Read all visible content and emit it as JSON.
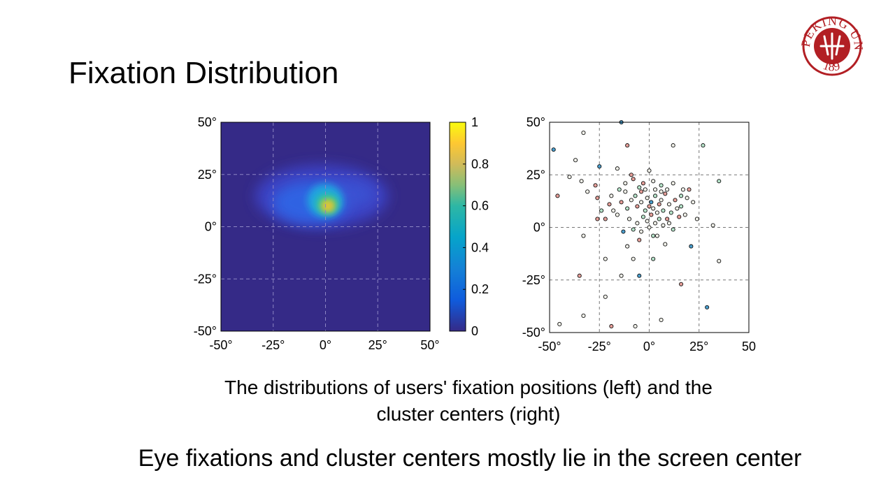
{
  "slide": {
    "title": "Fixation Distribution",
    "caption_line1": "The distributions of users' fixation positions (left) and the",
    "caption_line2": "cluster centers (right)",
    "conclusion": "Eye fixations and cluster centers mostly lie in the screen center"
  },
  "logo": {
    "name": "peking-university-seal",
    "text": "PEKING UNIVERSITY",
    "year": "1898",
    "color": "#b21f24"
  },
  "chart_data": [
    {
      "type": "heatmap",
      "name": "fixation-density",
      "x_ticks": [
        "-50°",
        "-25°",
        "0°",
        "25°",
        "50°"
      ],
      "y_ticks": [
        "50°",
        "25°",
        "0°",
        "-25°",
        "-50°"
      ],
      "xlim": [
        -50,
        50
      ],
      "ylim": [
        -50,
        50
      ],
      "grid": true,
      "peak_center": [
        1,
        9
      ],
      "colormap": "parula",
      "colorbar": {
        "ticks": [
          "1",
          "0.8",
          "0.6",
          "0.4",
          "0.2",
          "0"
        ],
        "range": [
          0,
          1
        ]
      }
    },
    {
      "type": "scatter",
      "name": "cluster-centers",
      "x_ticks": [
        "-50°",
        "-25°",
        "0°",
        "25°",
        "50"
      ],
      "y_ticks": [
        "50°",
        "25°",
        "0°",
        "-25°",
        "-50°"
      ],
      "xlim": [
        -50,
        50
      ],
      "ylim": [
        -50,
        50
      ],
      "grid": true,
      "colors": {
        "r": "#e8a09a",
        "g": "#b8e6cc",
        "b": "#4a9fcf",
        "w": "#f2f2ea"
      },
      "points": [
        [
          -14,
          50,
          "b"
        ],
        [
          -48,
          37,
          "b"
        ],
        [
          -33,
          45,
          "w"
        ],
        [
          -37,
          32,
          "w"
        ],
        [
          -25,
          29,
          "b"
        ],
        [
          -11,
          39,
          "r"
        ],
        [
          12,
          39,
          "w"
        ],
        [
          27,
          39,
          "g"
        ],
        [
          -40,
          24,
          "w"
        ],
        [
          -34,
          22,
          "w"
        ],
        [
          -46,
          15,
          "r"
        ],
        [
          -27,
          20,
          "r"
        ],
        [
          -16,
          28,
          "w"
        ],
        [
          0,
          27,
          "w"
        ],
        [
          -9,
          25,
          "r"
        ],
        [
          35,
          22,
          "g"
        ],
        [
          -31,
          17,
          "w"
        ],
        [
          -26,
          14,
          "r"
        ],
        [
          -20,
          11,
          "r"
        ],
        [
          -15,
          18,
          "g"
        ],
        [
          -12,
          21,
          "w"
        ],
        [
          -8,
          23,
          "r"
        ],
        [
          -5,
          19,
          "g"
        ],
        [
          -3,
          21,
          "r"
        ],
        [
          2,
          22,
          "w"
        ],
        [
          6,
          20,
          "g"
        ],
        [
          9,
          18,
          "w"
        ],
        [
          12,
          21,
          "w"
        ],
        [
          16,
          15,
          "g"
        ],
        [
          20,
          18,
          "r"
        ],
        [
          22,
          12,
          "w"
        ],
        [
          -18,
          8,
          "w"
        ],
        [
          -14,
          12,
          "r"
        ],
        [
          -11,
          9,
          "g"
        ],
        [
          -9,
          13,
          "w"
        ],
        [
          -7,
          15,
          "g"
        ],
        [
          -6,
          10,
          "r"
        ],
        [
          -4,
          12,
          "w"
        ],
        [
          -2,
          8,
          "g"
        ],
        [
          -1,
          14,
          "w"
        ],
        [
          0,
          10,
          "r"
        ],
        [
          1,
          12,
          "b"
        ],
        [
          2,
          9,
          "w"
        ],
        [
          3,
          15,
          "g"
        ],
        [
          4,
          7,
          "w"
        ],
        [
          5,
          11,
          "r"
        ],
        [
          6,
          13,
          "w"
        ],
        [
          7,
          8,
          "g"
        ],
        [
          8,
          16,
          "r"
        ],
        [
          10,
          11,
          "w"
        ],
        [
          11,
          7,
          "g"
        ],
        [
          13,
          13,
          "r"
        ],
        [
          14,
          9,
          "w"
        ],
        [
          16,
          10,
          "g"
        ],
        [
          18,
          6,
          "w"
        ],
        [
          19,
          14,
          "w"
        ],
        [
          -3,
          5,
          "g"
        ],
        [
          -1,
          3,
          "w"
        ],
        [
          1,
          6,
          "r"
        ],
        [
          3,
          2,
          "w"
        ],
        [
          5,
          4,
          "g"
        ],
        [
          7,
          1,
          "w"
        ],
        [
          9,
          4,
          "r"
        ],
        [
          -6,
          2,
          "w"
        ],
        [
          -10,
          4,
          "w"
        ],
        [
          -13,
          -2,
          "b"
        ],
        [
          -8,
          -1,
          "g"
        ],
        [
          -4,
          -2,
          "w"
        ],
        [
          0,
          0,
          "w"
        ],
        [
          4,
          -4,
          "w"
        ],
        [
          8,
          -8,
          "w"
        ],
        [
          12,
          -1,
          "g"
        ],
        [
          -11,
          -9,
          "w"
        ],
        [
          -5,
          -6,
          "r"
        ],
        [
          2,
          -4,
          "g"
        ],
        [
          -22,
          4,
          "r"
        ],
        [
          -26,
          4,
          "r"
        ],
        [
          -33,
          -4,
          "w"
        ],
        [
          -22,
          -15,
          "w"
        ],
        [
          -8,
          -15,
          "w"
        ],
        [
          2,
          -15,
          "g"
        ],
        [
          21,
          -9,
          "b"
        ],
        [
          32,
          1,
          "w"
        ],
        [
          35,
          -16,
          "w"
        ],
        [
          -14,
          -23,
          "w"
        ],
        [
          -5,
          -23,
          "b"
        ],
        [
          -35,
          -23,
          "r"
        ],
        [
          16,
          -27,
          "r"
        ],
        [
          -22,
          -33,
          "w"
        ],
        [
          29,
          -38,
          "b"
        ],
        [
          -33,
          -42,
          "w"
        ],
        [
          -45,
          -46,
          "w"
        ],
        [
          -19,
          -47,
          "r"
        ],
        [
          -7,
          -47,
          "w"
        ],
        [
          6,
          -44,
          "w"
        ],
        [
          -16,
          6,
          "w"
        ],
        [
          -19,
          15,
          "w"
        ],
        [
          15,
          5,
          "r"
        ],
        [
          -2,
          18,
          "w"
        ],
        [
          10,
          2,
          "w"
        ],
        [
          24,
          4,
          "w"
        ],
        [
          -24,
          8,
          "g"
        ],
        [
          6,
          17,
          "w"
        ],
        [
          -12,
          17,
          "w"
        ],
        [
          17,
          18,
          "w"
        ],
        [
          -4,
          17,
          "r"
        ],
        [
          3,
          18,
          "w"
        ]
      ]
    }
  ]
}
